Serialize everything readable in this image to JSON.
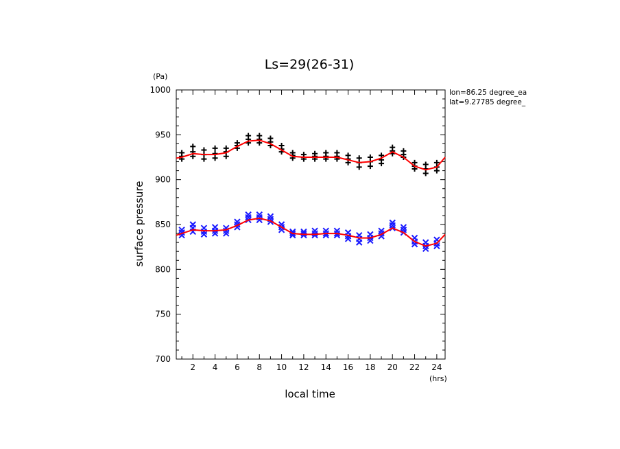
{
  "chart_data": {
    "type": "scatter",
    "title": "Ls=29(26-31)",
    "xlabel": "local time",
    "ylabel": "surface pressure",
    "xunit": "(hrs)",
    "yunit": "(Pa)",
    "xlim": [
      0.5,
      24.75
    ],
    "ylim": [
      700,
      1000
    ],
    "xticks": [
      2,
      4,
      6,
      8,
      10,
      12,
      14,
      16,
      18,
      20,
      22,
      24
    ],
    "yticks": [
      700,
      750,
      800,
      850,
      900,
      950,
      1000
    ],
    "annotations": [
      "lon=86.25 degree_ea",
      "lat=9.27785 degree_"
    ],
    "series": [
      {
        "marker": "+",
        "color": "#000000",
        "x": [
          1,
          1,
          1,
          2,
          2,
          2,
          3,
          3,
          3,
          4,
          4,
          4,
          5,
          5,
          5,
          6,
          6,
          6,
          7,
          7,
          7,
          8,
          8,
          8,
          9,
          9,
          9,
          10,
          10,
          10,
          11,
          11,
          11,
          12,
          12,
          12,
          13,
          13,
          13,
          14,
          14,
          14,
          15,
          15,
          15,
          16,
          16,
          16,
          17,
          17,
          17,
          18,
          18,
          18,
          19,
          19,
          19,
          20,
          20,
          20,
          21,
          21,
          21,
          22,
          22,
          22,
          23,
          23,
          23,
          24,
          24,
          24
        ],
        "y": [
          923,
          926,
          930,
          926,
          931,
          937,
          923,
          928,
          933,
          924,
          929,
          935,
          926,
          931,
          935,
          935,
          938,
          941,
          941,
          945,
          949,
          941,
          945,
          949,
          938,
          942,
          946,
          931,
          934,
          938,
          924,
          927,
          930,
          923,
          925,
          928,
          923,
          926,
          929,
          923,
          926,
          930,
          923,
          926,
          930,
          919,
          923,
          927,
          914,
          919,
          924,
          915,
          920,
          925,
          918,
          922,
          927,
          929,
          932,
          936,
          925,
          928,
          932,
          912,
          915,
          919,
          907,
          912,
          917,
          910,
          914,
          919
        ]
      },
      {
        "marker": "x",
        "color": "#1a1aff",
        "x": [
          1,
          1,
          1,
          2,
          2,
          2,
          3,
          3,
          3,
          4,
          4,
          4,
          5,
          5,
          5,
          6,
          6,
          6,
          7,
          7,
          7,
          8,
          8,
          8,
          9,
          9,
          9,
          10,
          10,
          10,
          11,
          11,
          11,
          12,
          12,
          12,
          13,
          13,
          13,
          14,
          14,
          14,
          15,
          15,
          15,
          16,
          16,
          16,
          17,
          17,
          17,
          18,
          18,
          18,
          19,
          19,
          19,
          20,
          20,
          20,
          21,
          21,
          21,
          22,
          22,
          22,
          23,
          23,
          23,
          24,
          24,
          24
        ],
        "y": [
          838,
          841,
          844,
          842,
          846,
          850,
          839,
          842,
          846,
          840,
          843,
          847,
          840,
          843,
          846,
          847,
          850,
          853,
          855,
          858,
          861,
          855,
          858,
          861,
          853,
          856,
          859,
          844,
          847,
          850,
          838,
          840,
          842,
          838,
          840,
          842,
          838,
          840,
          843,
          838,
          840,
          843,
          838,
          840,
          843,
          834,
          837,
          841,
          830,
          834,
          838,
          832,
          835,
          839,
          837,
          840,
          843,
          846,
          849,
          852,
          841,
          844,
          847,
          828,
          831,
          835,
          823,
          826,
          830,
          826,
          829,
          833
        ]
      },
      {
        "marker": "line",
        "color": "#ff0000",
        "x": [
          0.5,
          1,
          2,
          3,
          4,
          5,
          6,
          7,
          8,
          9,
          10,
          11,
          12,
          13,
          14,
          15,
          16,
          17,
          18,
          19,
          20,
          21,
          22,
          23,
          24,
          24.75
        ],
        "y": [
          924,
          925,
          929,
          928,
          928,
          930,
          937,
          943,
          944,
          940,
          933,
          926,
          925,
          925,
          925,
          925,
          922,
          919,
          920,
          924,
          931,
          925,
          915,
          911,
          914,
          925
        ]
      },
      {
        "marker": "line",
        "color": "#ff0000",
        "x": [
          0.5,
          1,
          2,
          3,
          4,
          5,
          6,
          7,
          8,
          9,
          10,
          11,
          12,
          13,
          14,
          15,
          16,
          17,
          18,
          19,
          20,
          21,
          22,
          23,
          24,
          24.75
        ],
        "y": [
          838,
          840,
          844,
          843,
          843,
          844,
          849,
          855,
          857,
          854,
          847,
          840,
          839,
          839,
          840,
          840,
          838,
          835,
          835,
          839,
          846,
          841,
          831,
          826,
          829,
          839
        ]
      }
    ]
  }
}
